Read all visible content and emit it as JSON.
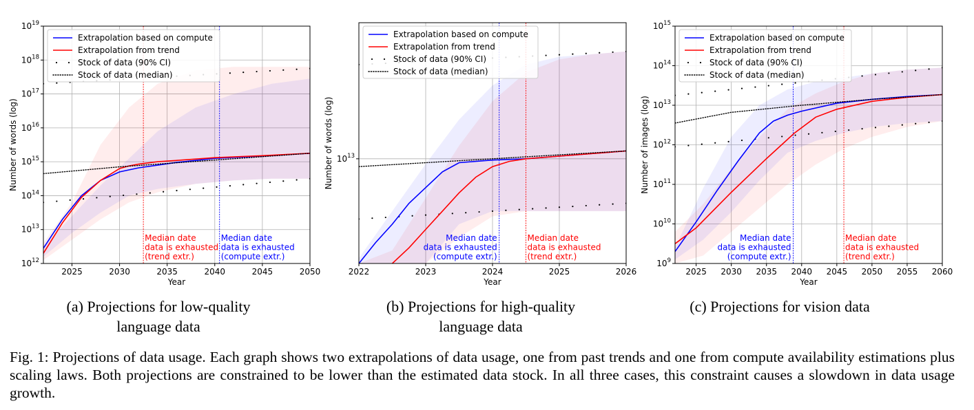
{
  "figure_caption": "Fig. 1: Projections of data usage. Each graph shows two extrapolations of data usage, one from past trends and one from compute availability estimations plus scaling laws. Both projections are constrained to be lower than the estimated data stock. In all three cases, this constraint causes a slowdown in data usage growth.",
  "legend": {
    "compute": "Extrapolation based on compute",
    "trend": "Extrapolation from trend",
    "ci": "Stock of data (90% CI)",
    "median": "Stock of data (median)"
  },
  "colors": {
    "compute": "#0000ff",
    "trend": "#ff0000",
    "stock": "#000000",
    "grid": "#b0b0b0"
  },
  "chart_data": [
    {
      "id": "a",
      "type": "line",
      "caption_line1": "(a) Projections for low-quality",
      "caption_line2": "language data",
      "xlabel": "Year",
      "ylabel": "Number of words (log)",
      "xlim": [
        2022,
        2050
      ],
      "ylim_log10": [
        12,
        19
      ],
      "log_y": true,
      "legend_position": "upper left",
      "grid": true,
      "xticks": [
        2025,
        2030,
        2035,
        2040,
        2045,
        2050
      ],
      "xtick_labels": [
        "2025",
        "2030",
        "2035",
        "2040",
        "2045",
        "2050"
      ],
      "ytick_exponents": [
        12,
        13,
        14,
        15,
        16,
        17,
        18,
        19
      ],
      "ytick_labels": [
        "10",
        "10",
        "10",
        "10",
        "10",
        "10",
        "10",
        "10"
      ],
      "ytick_sups": [
        "12",
        "13",
        "14",
        "15",
        "16",
        "17",
        "18",
        "19"
      ],
      "series": [
        {
          "name": "Extrapolation based on compute",
          "key": "compute",
          "x": [
            2022,
            2024,
            2026,
            2028,
            2030,
            2032,
            2034,
            2036,
            2038,
            2040,
            2045,
            2050
          ],
          "y_log10": [
            12.45,
            13.3,
            14.0,
            14.45,
            14.7,
            14.82,
            14.9,
            14.98,
            15.04,
            15.1,
            15.17,
            15.25
          ]
        },
        {
          "name": "Extrapolation from trend",
          "key": "trend",
          "x": [
            2022,
            2024,
            2026,
            2028,
            2030,
            2031,
            2032,
            2034,
            2036,
            2040,
            2045,
            2050
          ],
          "y_log10": [
            12.3,
            13.2,
            13.95,
            14.45,
            14.8,
            14.88,
            14.93,
            15.0,
            15.04,
            15.12,
            15.18,
            15.25
          ]
        },
        {
          "name": "Stock of data (median)",
          "key": "median",
          "x": [
            2022,
            2030,
            2040,
            2050
          ],
          "y_log10": [
            14.65,
            14.85,
            15.05,
            15.25
          ]
        }
      ],
      "stock_ci": {
        "x": [
          2022,
          2050
        ],
        "low_log10": [
          13.8,
          14.5
        ],
        "high_log10": [
          17.3,
          17.75
        ]
      },
      "compute_band": {
        "x": [
          2022,
          2025,
          2028,
          2031,
          2034,
          2038,
          2042,
          2046,
          2050
        ],
        "low_log10": [
          12.2,
          12.9,
          13.5,
          14.0,
          14.2,
          14.35,
          14.45,
          14.5,
          14.5
        ],
        "high_log10": [
          12.5,
          13.4,
          14.3,
          15.1,
          15.9,
          16.6,
          17.0,
          17.3,
          17.45
        ]
      },
      "trend_band": {
        "x": [
          2022,
          2025,
          2028,
          2031,
          2034,
          2038,
          2042,
          2046,
          2050
        ],
        "low_log10": [
          12.1,
          12.7,
          13.3,
          13.8,
          14.1,
          14.35,
          14.45,
          14.5,
          14.5
        ],
        "high_log10": [
          12.6,
          13.8,
          15.5,
          16.6,
          17.3,
          17.7,
          17.8,
          17.8,
          17.8
        ]
      },
      "vlines": [
        {
          "x": 2032.5,
          "key": "trend",
          "lines": [
            "Median date",
            "data is exhausted",
            "(trend extr.)"
          ],
          "label_side": "right"
        },
        {
          "x": 2040.5,
          "key": "compute",
          "lines": [
            "Median date",
            "data is exhausted",
            "(compute extr.)"
          ],
          "label_side": "right"
        }
      ]
    },
    {
      "id": "b",
      "type": "line",
      "caption_line1": "(b) Projections for high-quality",
      "caption_line2": "language data",
      "xlabel": "Year",
      "ylabel": "Number of words (log)",
      "xlim": [
        2022,
        2026
      ],
      "ylim_log10": [
        12.6,
        13.52
      ],
      "log_y": true,
      "legend_position": "upper left",
      "grid": true,
      "xticks": [
        2022,
        2023,
        2024,
        2025,
        2026
      ],
      "xtick_labels": [
        "2022",
        "2023",
        "2024",
        "2025",
        "2026"
      ],
      "ytick_exponents": [
        13
      ],
      "ytick_labels": [
        "10"
      ],
      "ytick_sups": [
        "13"
      ],
      "series": [
        {
          "name": "Extrapolation based on compute",
          "key": "compute",
          "x": [
            2022,
            2022.25,
            2022.5,
            2022.75,
            2023,
            2023.25,
            2023.5,
            2023.75,
            2024,
            2024.5,
            2025,
            2025.5,
            2026
          ],
          "y_log10": [
            12.6,
            12.68,
            12.75,
            12.83,
            12.89,
            12.95,
            12.985,
            12.99,
            12.995,
            13.0,
            13.01,
            13.02,
            13.03
          ]
        },
        {
          "name": "Extrapolation from trend",
          "key": "trend",
          "x": [
            2022.5,
            2022.75,
            2023,
            2023.25,
            2023.5,
            2023.75,
            2024,
            2024.25,
            2024.5,
            2025,
            2025.5,
            2026
          ],
          "y_log10": [
            12.6,
            12.66,
            12.73,
            12.8,
            12.87,
            12.93,
            12.97,
            12.99,
            13.0,
            13.01,
            13.02,
            13.03
          ]
        },
        {
          "name": "Stock of data (median)",
          "key": "median",
          "x": [
            2022,
            2024,
            2026
          ],
          "y_log10": [
            12.97,
            13.0,
            13.03
          ]
        }
      ],
      "stock_ci": {
        "x": [
          2022,
          2026
        ],
        "low_log10": [
          12.77,
          12.83
        ],
        "high_log10": [
          13.36,
          13.41
        ]
      },
      "compute_band": {
        "x": [
          2022,
          2022.5,
          2023,
          2023.5,
          2024,
          2024.5,
          2025,
          2025.5,
          2026
        ],
        "low_log10": [
          12.6,
          12.6,
          12.6,
          12.75,
          12.8,
          12.8,
          12.8,
          12.8,
          12.8
        ],
        "high_log10": [
          12.62,
          12.8,
          12.98,
          13.15,
          13.28,
          13.36,
          13.39,
          13.4,
          13.41
        ]
      },
      "trend_band": {
        "x": [
          2022,
          2022.5,
          2023,
          2023.5,
          2024,
          2024.5,
          2025,
          2025.5,
          2026
        ],
        "low_log10": [
          12.6,
          12.6,
          12.6,
          12.7,
          12.78,
          12.8,
          12.8,
          12.8,
          12.8
        ],
        "high_log10": [
          12.6,
          12.65,
          12.85,
          13.05,
          13.22,
          13.33,
          13.38,
          13.4,
          13.41
        ]
      },
      "vlines": [
        {
          "x": 2024.1,
          "key": "compute",
          "lines": [
            "Median date",
            "data is exhausted",
            "(compute extr.)"
          ],
          "label_side": "left"
        },
        {
          "x": 2024.5,
          "key": "trend",
          "lines": [
            "Median date",
            "data is exhausted",
            "(trend extr.)"
          ],
          "label_side": "right"
        }
      ]
    },
    {
      "id": "c",
      "type": "line",
      "caption_line1": "(c) Projections for vision data",
      "caption_line2": "",
      "xlabel": "Year",
      "ylabel": "Number of images (log)",
      "xlim": [
        2022,
        2060
      ],
      "ylim_log10": [
        9,
        15
      ],
      "log_y": true,
      "legend_position": "upper left",
      "grid": true,
      "xticks": [
        2025,
        2030,
        2035,
        2040,
        2045,
        2050,
        2055,
        2060
      ],
      "xtick_labels": [
        "2025",
        "2030",
        "2035",
        "2040",
        "2045",
        "2050",
        "2055",
        "2060"
      ],
      "ytick_exponents": [
        9,
        10,
        11,
        12,
        13,
        14,
        15
      ],
      "ytick_labels": [
        "10",
        "10",
        "10",
        "10",
        "10",
        "10",
        "10"
      ],
      "ytick_sups": [
        "9",
        "10",
        "11",
        "12",
        "13",
        "14",
        "15"
      ],
      "series": [
        {
          "name": "Extrapolation based on compute",
          "key": "compute",
          "x": [
            2022,
            2025,
            2028,
            2031,
            2034,
            2036,
            2038,
            2040,
            2045,
            2050,
            2055,
            2060
          ],
          "y_log10": [
            9.3,
            10.05,
            10.85,
            11.6,
            12.3,
            12.6,
            12.75,
            12.85,
            13.05,
            13.15,
            13.22,
            13.27
          ]
        },
        {
          "name": "Extrapolation from trend",
          "key": "trend",
          "x": [
            2022,
            2025,
            2030,
            2035,
            2039,
            2042,
            2045,
            2050,
            2055,
            2060
          ],
          "y_log10": [
            9.5,
            9.9,
            10.8,
            11.65,
            12.3,
            12.7,
            12.9,
            13.1,
            13.2,
            13.27
          ]
        },
        {
          "name": "Stock of data (median)",
          "key": "median",
          "x": [
            2022,
            2030,
            2040,
            2050,
            2060
          ],
          "y_log10": [
            12.55,
            12.82,
            13.0,
            13.15,
            13.27
          ]
        }
      ],
      "stock_ci": {
        "x": [
          2022,
          2060
        ],
        "low_log10": [
          11.95,
          12.6
        ],
        "high_log10": [
          13.25,
          13.95
        ]
      },
      "compute_band": {
        "x": [
          2022,
          2026,
          2030,
          2034,
          2038,
          2042,
          2046,
          2050,
          2055,
          2060
        ],
        "low_log10": [
          9.1,
          9.6,
          10.3,
          11.1,
          11.8,
          12.1,
          12.3,
          12.45,
          12.55,
          12.6
        ],
        "high_log10": [
          9.4,
          10.9,
          12.2,
          13.0,
          13.4,
          13.6,
          13.7,
          13.8,
          13.9,
          13.95
        ]
      },
      "trend_band": {
        "x": [
          2022,
          2026,
          2030,
          2034,
          2038,
          2042,
          2046,
          2050,
          2055,
          2060
        ],
        "low_log10": [
          9.0,
          9.2,
          9.8,
          10.4,
          11.0,
          11.5,
          11.9,
          12.2,
          12.45,
          12.6
        ],
        "high_log10": [
          9.8,
          10.5,
          11.4,
          12.2,
          12.9,
          13.3,
          13.6,
          13.8,
          13.9,
          13.95
        ]
      },
      "vlines": [
        {
          "x": 2038.8,
          "key": "compute",
          "lines": [
            "Median date",
            "data is exhausted",
            "(compute extr.)"
          ],
          "label_side": "left"
        },
        {
          "x": 2046,
          "key": "trend",
          "lines": [
            "Median date",
            "data is exhausted",
            "(trend extr.)"
          ],
          "label_side": "right"
        }
      ]
    }
  ]
}
